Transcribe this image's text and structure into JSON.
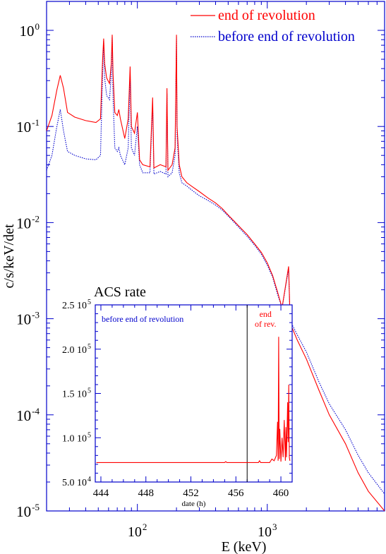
{
  "chart_data": [
    {
      "type": "line",
      "title": "",
      "xlabel": "E (keV)",
      "ylabel": "c/s/keV/det",
      "xscale": "log",
      "yscale": "log",
      "xlim": [
        20,
        8000
      ],
      "ylim": [
        1e-05,
        2
      ],
      "xticks": [
        {
          "value": 100,
          "base": "10",
          "exp": "2"
        },
        {
          "value": 1000,
          "base": "10",
          "exp": "3"
        }
      ],
      "yticks": [
        {
          "value": 1,
          "base": "10",
          "exp": "0"
        },
        {
          "value": 0.1,
          "base": "10",
          "exp": "-1"
        },
        {
          "value": 0.01,
          "base": "10",
          "exp": "-2"
        },
        {
          "value": 0.001,
          "base": "10",
          "exp": "-3"
        },
        {
          "value": 0.0001,
          "base": "10",
          "exp": "-4"
        },
        {
          "value": 1e-05,
          "base": "10",
          "exp": "-5"
        }
      ],
      "legend_position": "top-right",
      "grid": false,
      "series": [
        {
          "name": "end of revolution",
          "color": "#ff0000",
          "style": "solid",
          "points": [
            [
              20,
              0.09
            ],
            [
              22,
              0.13
            ],
            [
              24,
              0.24
            ],
            [
              25.5,
              0.34
            ],
            [
              27,
              0.25
            ],
            [
              29,
              0.14
            ],
            [
              33,
              0.125
            ],
            [
              40,
              0.115
            ],
            [
              48,
              0.11
            ],
            [
              52,
              0.12
            ],
            [
              54,
              0.5
            ],
            [
              55,
              0.82
            ],
            [
              56,
              0.45
            ],
            [
              58,
              0.32
            ],
            [
              61,
              0.28
            ],
            [
              63,
              0.45
            ],
            [
              64,
              0.9
            ],
            [
              65,
              0.35
            ],
            [
              67,
              0.14
            ],
            [
              70,
              0.13
            ],
            [
              72,
              0.15
            ],
            [
              74,
              0.12
            ],
            [
              80,
              0.075
            ],
            [
              85,
              0.12
            ],
            [
              88,
              0.42
            ],
            [
              90,
              0.1
            ],
            [
              95,
              0.085
            ],
            [
              100,
              0.14
            ],
            [
              104,
              0.045
            ],
            [
              110,
              0.04
            ],
            [
              125,
              0.038
            ],
            [
              131,
              0.2
            ],
            [
              134,
              0.037
            ],
            [
              150,
              0.04
            ],
            [
              166,
              0.038
            ],
            [
              169,
              0.25
            ],
            [
              172,
              0.035
            ],
            [
              185,
              0.04
            ],
            [
              195,
              0.06
            ],
            [
              200,
              0.9
            ],
            [
              202,
              0.1
            ],
            [
              210,
              0.04
            ],
            [
              220,
              0.03
            ],
            [
              240,
              0.026
            ],
            [
              260,
              0.024
            ],
            [
              300,
              0.021
            ],
            [
              350,
              0.018
            ],
            [
              400,
              0.016
            ],
            [
              450,
              0.014
            ],
            [
              500,
              0.012
            ],
            [
              550,
              0.0105
            ],
            [
              600,
              0.0093
            ],
            [
              700,
              0.0075
            ],
            [
              800,
              0.006
            ],
            [
              900,
              0.0049
            ],
            [
              1000,
              0.0038
            ],
            [
              1100,
              0.0028
            ],
            [
              1200,
              0.0019
            ],
            [
              1300,
              0.0013
            ],
            [
              1460,
              0.0035
            ],
            [
              1500,
              0.0009
            ],
            [
              1700,
              0.0006
            ],
            [
              2000,
              0.00038
            ],
            [
              2500,
              0.00018
            ],
            [
              3000,
              0.0001
            ],
            [
              4000,
              5e-05
            ],
            [
              5000,
              2.5e-05
            ],
            [
              6000,
              1.6e-05
            ],
            [
              8000,
              1e-05
            ]
          ]
        },
        {
          "name": "before end of revolution",
          "color": "#0000cc",
          "style": "dotted",
          "points": [
            [
              20,
              0.035
            ],
            [
              22,
              0.05
            ],
            [
              24,
              0.1
            ],
            [
              25.5,
              0.15
            ],
            [
              27,
              0.09
            ],
            [
              29,
              0.055
            ],
            [
              33,
              0.05
            ],
            [
              40,
              0.046
            ],
            [
              48,
              0.045
            ],
            [
              52,
              0.05
            ],
            [
              54,
              0.35
            ],
            [
              55,
              0.78
            ],
            [
              56,
              0.32
            ],
            [
              58,
              0.21
            ],
            [
              61,
              0.19
            ],
            [
              63,
              0.35
            ],
            [
              64,
              0.85
            ],
            [
              65,
              0.2
            ],
            [
              67,
              0.06
            ],
            [
              70,
              0.055
            ],
            [
              72,
              0.06
            ],
            [
              74,
              0.05
            ],
            [
              80,
              0.04
            ],
            [
              85,
              0.06
            ],
            [
              88,
              0.35
            ],
            [
              90,
              0.06
            ],
            [
              95,
              0.05
            ],
            [
              100,
              0.1
            ],
            [
              104,
              0.04
            ],
            [
              110,
              0.033
            ],
            [
              125,
              0.033
            ],
            [
              131,
              0.17
            ],
            [
              134,
              0.032
            ],
            [
              150,
              0.034
            ],
            [
              166,
              0.032
            ],
            [
              169,
              0.22
            ],
            [
              172,
              0.03
            ],
            [
              185,
              0.033
            ],
            [
              195,
              0.05
            ],
            [
              200,
              0.85
            ],
            [
              202,
              0.08
            ],
            [
              210,
              0.033
            ],
            [
              220,
              0.026
            ],
            [
              240,
              0.024
            ],
            [
              260,
              0.022
            ],
            [
              300,
              0.019
            ],
            [
              350,
              0.017
            ],
            [
              400,
              0.0152
            ],
            [
              450,
              0.0135
            ],
            [
              500,
              0.0117
            ],
            [
              550,
              0.0102
            ],
            [
              600,
              0.009
            ],
            [
              700,
              0.0072
            ],
            [
              800,
              0.0058
            ],
            [
              900,
              0.0047
            ],
            [
              1000,
              0.0036
            ],
            [
              1100,
              0.0027
            ],
            [
              1200,
              0.0018
            ],
            [
              1300,
              0.0013
            ],
            [
              1460,
              0.0033
            ],
            [
              1500,
              0.00095
            ],
            [
              1700,
              0.00068
            ],
            [
              2000,
              0.00045
            ],
            [
              2500,
              0.00022
            ],
            [
              3000,
              0.00013
            ],
            [
              4000,
              7e-05
            ],
            [
              5000,
              3.8e-05
            ],
            [
              6000,
              2.5e-05
            ],
            [
              8000,
              1.5e-05
            ]
          ]
        }
      ]
    },
    {
      "type": "line",
      "title": "ACS rate",
      "xlabel": "date (h)",
      "ylabel": "",
      "xlim": [
        443.5,
        461
      ],
      "ylim": [
        50000,
        250000
      ],
      "xticks": [
        444,
        448,
        452,
        456,
        460
      ],
      "yticks": [
        {
          "value": 250000,
          "label": "2.5 10",
          "exp": "5"
        },
        {
          "value": 200000,
          "label": "2.0 10",
          "exp": "5"
        },
        {
          "value": 150000,
          "label": "1.5 10",
          "exp": "5"
        },
        {
          "value": 100000,
          "label": "1.0 10",
          "exp": "5"
        },
        {
          "value": 50000,
          "label": "5.0 10",
          "exp": "4"
        }
      ],
      "vline_x": 457,
      "annotations": [
        {
          "text": "before end of revolution",
          "color": "#0000cc"
        },
        {
          "text": "end",
          "color": "#ff0000"
        },
        {
          "text": "of rev.",
          "color": "#ff0000"
        }
      ],
      "series": [
        {
          "color": "#ff0000",
          "points": [
            [
              443.6,
              72000
            ],
            [
              455,
              72000
            ],
            [
              455.1,
              73000
            ],
            [
              455.2,
              72000
            ],
            [
              458,
              72000
            ],
            [
              458.1,
              74000
            ],
            [
              458.2,
              72000
            ],
            [
              459,
              72000
            ],
            [
              459.2,
              76000
            ],
            [
              459.4,
              74000
            ],
            [
              459.6,
              80000
            ],
            [
              459.7,
              118000
            ],
            [
              459.75,
              74000
            ],
            [
              459.8,
              214000
            ],
            [
              459.85,
              76000
            ],
            [
              459.9,
              110000
            ],
            [
              460.0,
              73000
            ],
            [
              460.1,
              100000
            ],
            [
              460.2,
              78000
            ],
            [
              460.3,
              120000
            ],
            [
              460.4,
              74000
            ],
            [
              460.45,
              112000
            ],
            [
              460.5,
              78000
            ],
            [
              460.6,
              140000
            ],
            [
              460.65,
              95000
            ],
            [
              460.7,
              160000
            ],
            [
              460.75,
              78000
            ],
            [
              460.8,
              74000
            ]
          ]
        }
      ]
    }
  ]
}
